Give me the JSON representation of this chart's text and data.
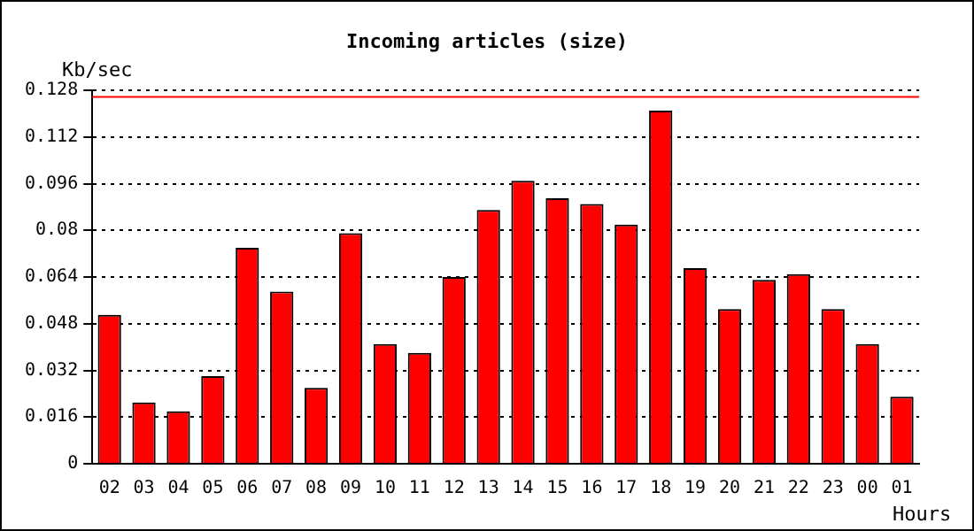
{
  "chart_data": {
    "type": "bar",
    "title": "Incoming articles (size)",
    "ylabel": "Kb/sec",
    "xlabel": "Hours",
    "categories": [
      "02",
      "03",
      "04",
      "05",
      "06",
      "07",
      "08",
      "09",
      "10",
      "11",
      "12",
      "13",
      "14",
      "15",
      "16",
      "17",
      "18",
      "19",
      "20",
      "21",
      "22",
      "23",
      "00",
      "01"
    ],
    "values": [
      0.051,
      0.021,
      0.018,
      0.03,
      0.074,
      0.059,
      0.026,
      0.079,
      0.041,
      0.038,
      0.064,
      0.087,
      0.097,
      0.091,
      0.089,
      0.082,
      0.121,
      0.067,
      0.053,
      0.063,
      0.065,
      0.053,
      0.041,
      0.023
    ],
    "color": "#ff0000",
    "ylim": [
      0,
      0.128
    ],
    "yticks": [
      0,
      0.016,
      0.032,
      0.048,
      0.064,
      0.08,
      0.096,
      0.112,
      0.128
    ],
    "grid": "y",
    "line_style": "dotted",
    "ref_lines": [
      {
        "axis": "y",
        "value": 0.1257,
        "color": "#ff0000"
      }
    ]
  }
}
